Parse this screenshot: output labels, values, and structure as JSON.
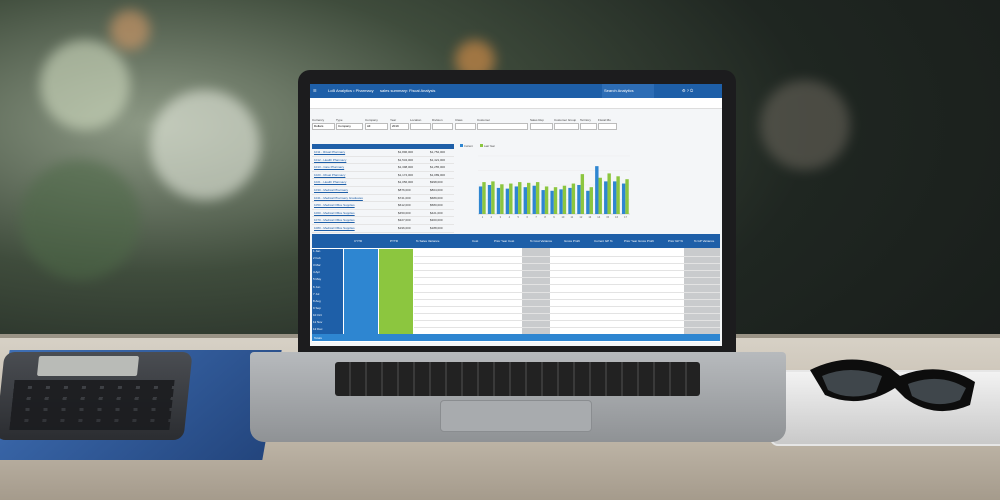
{
  "app": {
    "title": "LoB Analytics • Pharmacy",
    "tab_label": "sales summary: Fiscal Analysis",
    "search_placeholder": "Search Analytics"
  },
  "filters": {
    "labels": [
      "Currency",
      "Type",
      "Company",
      "Year",
      "Location",
      "Division",
      "Class",
      "Customer",
      "Sales Rep",
      "Customer Group",
      "Territory",
      "Fiscal Mo"
    ],
    "values": [
      "Dollars",
      "Company",
      "All",
      "2019",
      "",
      "",
      "",
      "",
      "",
      "",
      "",
      ""
    ]
  },
  "list": {
    "items": [
      "1011 - Ritual Pharmacy",
      "1012 - Health Pharmacy",
      "1013 - Care Pharmacy",
      "1020 - Ritual Pharmacy",
      "1021 - Health Pharmacy",
      "1030 - Medical Pharmacy",
      "1041 - Medical Pharmacy Graduates",
      "1050 - Medical Office Supplies",
      "1060 - Medical Office Supplies",
      "1070 - Medical Office Supplies",
      "1080 - Medical Office Supplies"
    ],
    "current": [
      "$1,896,000",
      "$1,534,000",
      "$1,398,000",
      "$1,174,000",
      "$1,056,000",
      "$876,000",
      "$741,000",
      "$612,000",
      "$450,000",
      "$327,000",
      "$196,000"
    ],
    "prior": [
      "$1,752,000",
      "$1,421,000",
      "$1,255,000",
      "$1,089,000",
      "$998,000",
      "$804,000",
      "$689,000",
      "$580,000",
      "$421,000",
      "$300,000",
      "$188,000"
    ]
  },
  "chart_data": {
    "type": "bar",
    "categories": [
      "1",
      "2",
      "3",
      "4",
      "5",
      "6",
      "7",
      "8",
      "9",
      "10",
      "11",
      "12",
      "13",
      "14",
      "15",
      "16",
      "17"
    ],
    "series": [
      {
        "name": "Current",
        "values": [
          38,
          40,
          36,
          35,
          38,
          37,
          39,
          33,
          32,
          34,
          36,
          40,
          32,
          66,
          45,
          45,
          42
        ]
      },
      {
        "name": "Last Year",
        "values": [
          44,
          45,
          41,
          42,
          44,
          43,
          44,
          38,
          37,
          39,
          42,
          55,
          37,
          50,
          56,
          52,
          48
        ]
      }
    ],
    "ylim": [
      0,
      80
    ],
    "legend": "top-left",
    "colors": {
      "current": "#2e86d1",
      "last_year": "#8cc63f"
    }
  },
  "table": {
    "headers": [
      "CYTD",
      "PYTD",
      "% Sales Variance",
      "Cost",
      "Prior Year Cost",
      "% Cost Variance",
      "Gross Profit",
      "Current GP %",
      "Prior Year Gross Profit",
      "Prior GP %",
      "% GP Variance"
    ],
    "rows": [
      "1 Jan",
      "2 Feb",
      "3 Mar",
      "4 Apr",
      "5 May",
      "6 Jun",
      "7 Jul",
      "8 Aug",
      "9 Sep",
      "10 Oct",
      "11 Nov",
      "12 Dec"
    ],
    "total_label": "Totals"
  }
}
